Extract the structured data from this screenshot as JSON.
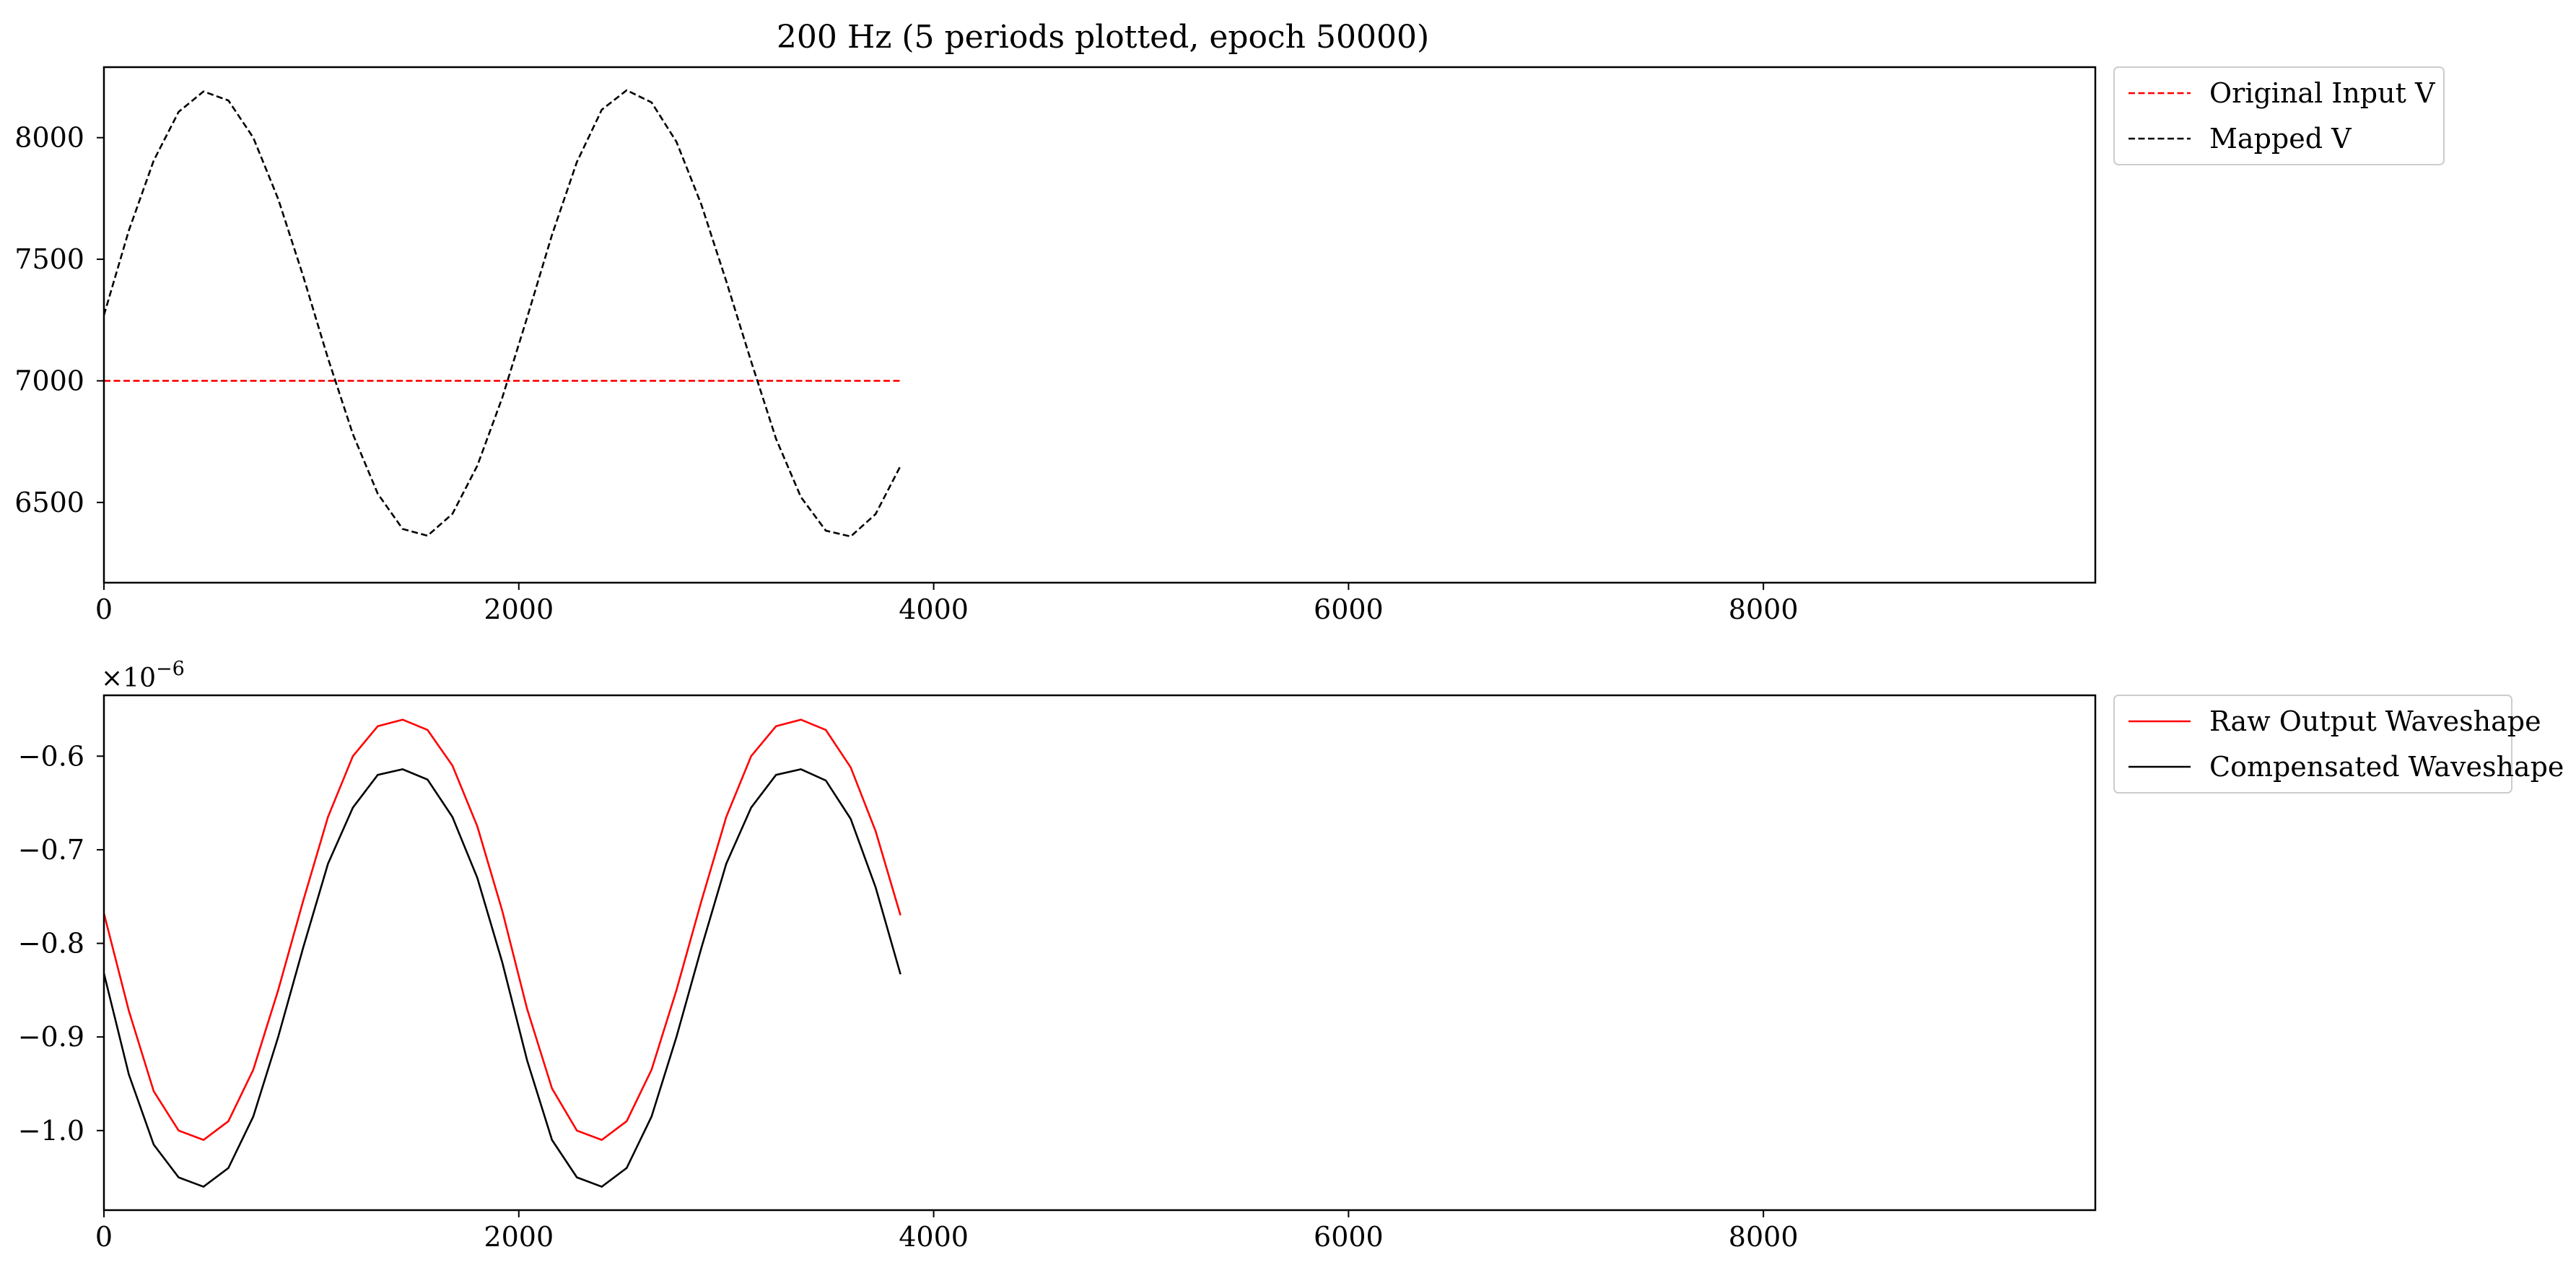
{
  "figure_title": "200 Hz (5 periods plotted, epoch 50000)",
  "chart_data": [
    {
      "type": "line",
      "title": "200 Hz (5 periods plotted, epoch 50000)",
      "xlabel": "",
      "ylabel": "",
      "xlim": [
        0,
        9600
      ],
      "ylim": [
        6170,
        8290
      ],
      "xticks": [
        0,
        2000,
        4000,
        6000,
        8000
      ],
      "yticks": [
        6500,
        7000,
        7500,
        8000
      ],
      "xtick_labels": [
        "0",
        "2000",
        "4000",
        "6000",
        "8000"
      ],
      "ytick_labels": [
        "6500",
        "7000",
        "7500",
        "8000"
      ],
      "grid": false,
      "legend_position": "outside upper right",
      "series": [
        {
          "name": "Original Input V",
          "color": "#ff0000",
          "linestyle": "dashed",
          "x": [
            0,
            3840
          ],
          "y": [
            7000,
            7000
          ]
        },
        {
          "name": "Mapped V",
          "color": "#000000",
          "linestyle": "dashed",
          "x": [
            0,
            120,
            240,
            360,
            480,
            600,
            720,
            840,
            960,
            1080,
            1200,
            1320,
            1440,
            1560,
            1680,
            1800,
            1920,
            2040,
            2160,
            2280,
            2400,
            2520,
            2640,
            2760,
            2880,
            3000,
            3120,
            3240,
            3360,
            3480,
            3600,
            3720,
            3840
          ],
          "y": [
            7270,
            7618,
            7906,
            8106,
            8190,
            8153,
            8000,
            7748,
            7432,
            7093,
            6781,
            6536,
            6391,
            6363,
            6453,
            6651,
            6930,
            7260,
            7600,
            7900,
            8115,
            8195,
            8145,
            7983,
            7725,
            7410,
            7080,
            6762,
            6522,
            6384,
            6360,
            6452,
            6650
          ]
        }
      ]
    },
    {
      "type": "line",
      "title": "",
      "xlabel": "",
      "ylabel": "",
      "y_offset_label": "×10−6",
      "xlim": [
        0,
        9600
      ],
      "ylim": [
        -1.085,
        -0.535
      ],
      "xticks": [
        0,
        2000,
        4000,
        6000,
        8000
      ],
      "yticks": [
        -1.0,
        -0.9,
        -0.8,
        -0.7,
        -0.6
      ],
      "xtick_labels": [
        "0",
        "2000",
        "4000",
        "6000",
        "8000"
      ],
      "ytick_labels": [
        "−1.0",
        "−0.9",
        "−0.8",
        "−0.7",
        "−0.6"
      ],
      "grid": false,
      "legend_position": "outside upper right",
      "series": [
        {
          "name": "Raw Output Waveshape",
          "color": "#ff0000",
          "linestyle": "solid",
          "x": [
            0,
            120,
            240,
            360,
            480,
            600,
            720,
            840,
            960,
            1080,
            1200,
            1320,
            1440,
            1560,
            1680,
            1800,
            1920,
            2040,
            2160,
            2280,
            2400,
            2520,
            2640,
            2760,
            2880,
            3000,
            3120,
            3240,
            3360,
            3480,
            3600,
            3720,
            3840
          ],
          "y": [
            -0.768,
            -0.872,
            -0.958,
            -1.0,
            -1.01,
            -0.99,
            -0.935,
            -0.85,
            -0.755,
            -0.665,
            -0.6,
            -0.568,
            -0.561,
            -0.572,
            -0.61,
            -0.675,
            -0.765,
            -0.87,
            -0.955,
            -1.0,
            -1.01,
            -0.99,
            -0.935,
            -0.85,
            -0.755,
            -0.665,
            -0.6,
            -0.568,
            -0.561,
            -0.572,
            -0.612,
            -0.68,
            -0.77
          ]
        },
        {
          "name": "Compensated Waveshape",
          "color": "#000000",
          "linestyle": "solid",
          "x": [
            0,
            120,
            240,
            360,
            480,
            600,
            720,
            840,
            960,
            1080,
            1200,
            1320,
            1440,
            1560,
            1680,
            1800,
            1920,
            2040,
            2160,
            2280,
            2400,
            2520,
            2640,
            2760,
            2880,
            3000,
            3120,
            3240,
            3360,
            3480,
            3600,
            3720,
            3840
          ],
          "y": [
            -0.832,
            -0.94,
            -1.015,
            -1.05,
            -1.06,
            -1.04,
            -0.985,
            -0.9,
            -0.805,
            -0.715,
            -0.655,
            -0.62,
            -0.614,
            -0.625,
            -0.665,
            -0.73,
            -0.82,
            -0.925,
            -1.01,
            -1.05,
            -1.06,
            -1.04,
            -0.985,
            -0.9,
            -0.805,
            -0.715,
            -0.655,
            -0.62,
            -0.614,
            -0.626,
            -0.667,
            -0.74,
            -0.833
          ]
        }
      ]
    }
  ]
}
